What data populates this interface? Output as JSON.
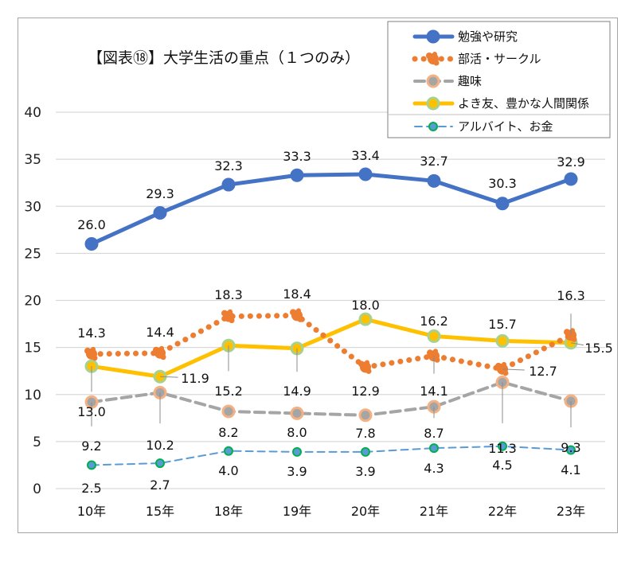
{
  "chart_data": {
    "type": "line",
    "title": "【図表⑱】大学生活の重点（１つのみ）",
    "xlabel": "",
    "ylabel": "",
    "categories": [
      "10年",
      "15年",
      "18年",
      "19年",
      "20年",
      "21年",
      "22年",
      "23年"
    ],
    "ylim": [
      0,
      40
    ],
    "yticks": [
      0,
      5,
      10,
      15,
      20,
      25,
      30,
      35,
      40
    ],
    "grid": true,
    "legend_position": "top-right",
    "series": [
      {
        "name": "勉強や研究",
        "values": [
          26.0,
          29.3,
          32.3,
          33.3,
          33.4,
          32.7,
          30.3,
          32.9
        ],
        "line_color": "#4472c4",
        "marker_fill": "#4472c4",
        "marker_stroke": "#4472c4",
        "style": "solid"
      },
      {
        "name": "部活・サークル",
        "values": [
          14.3,
          14.4,
          18.3,
          18.4,
          12.9,
          14.1,
          12.7,
          16.3
        ],
        "line_color": "#ed7d31",
        "marker_fill": "#ed7d31",
        "marker_stroke": "#ed7d31",
        "style": "dotted"
      },
      {
        "name": "趣味",
        "values": [
          9.2,
          10.2,
          8.2,
          8.0,
          7.8,
          8.7,
          11.3,
          9.3
        ],
        "line_color": "#a5a5a5",
        "marker_fill": "#a5a5a5",
        "marker_stroke": "#f4b183",
        "style": "dashed"
      },
      {
        "name": "よき友、豊かな人間関係",
        "values": [
          13.0,
          11.9,
          15.2,
          14.9,
          18.0,
          16.2,
          15.7,
          15.5
        ],
        "line_color": "#ffc000",
        "marker_fill": "#ffc000",
        "marker_stroke": "#a9d18e",
        "style": "solid"
      },
      {
        "name": "アルバイト、お金",
        "values": [
          2.5,
          2.7,
          4.0,
          3.9,
          3.9,
          4.3,
          4.5,
          4.1
        ],
        "line_color": "#5b9bd5",
        "marker_fill": "#5b9bd5",
        "marker_stroke": "#00b050",
        "style": "longdash"
      }
    ],
    "data_labels": {
      "勉強や研究": [
        "26.0",
        "29.3",
        "32.3",
        "33.3",
        "33.4",
        "32.7",
        "30.3",
        "32.9"
      ],
      "部活・サークル": [
        "14.3",
        "14.4",
        "18.3",
        "18.4",
        "12.9",
        "14.1",
        "12.7",
        "16.3"
      ],
      "趣味": [
        "9.2",
        "10.2",
        "8.2",
        "8.0",
        "7.8",
        "8.7",
        "11.3",
        "9.3"
      ],
      "よき友、豊かな人間関係": [
        "13.0",
        "11.9",
        "15.2",
        "14.9",
        "18.0",
        "16.2",
        "15.7",
        "15.5"
      ],
      "アルバイト、お金": [
        "2.5",
        "2.7",
        "4.0",
        "3.9",
        "3.9",
        "4.3",
        "4.5",
        "4.1"
      ]
    }
  }
}
